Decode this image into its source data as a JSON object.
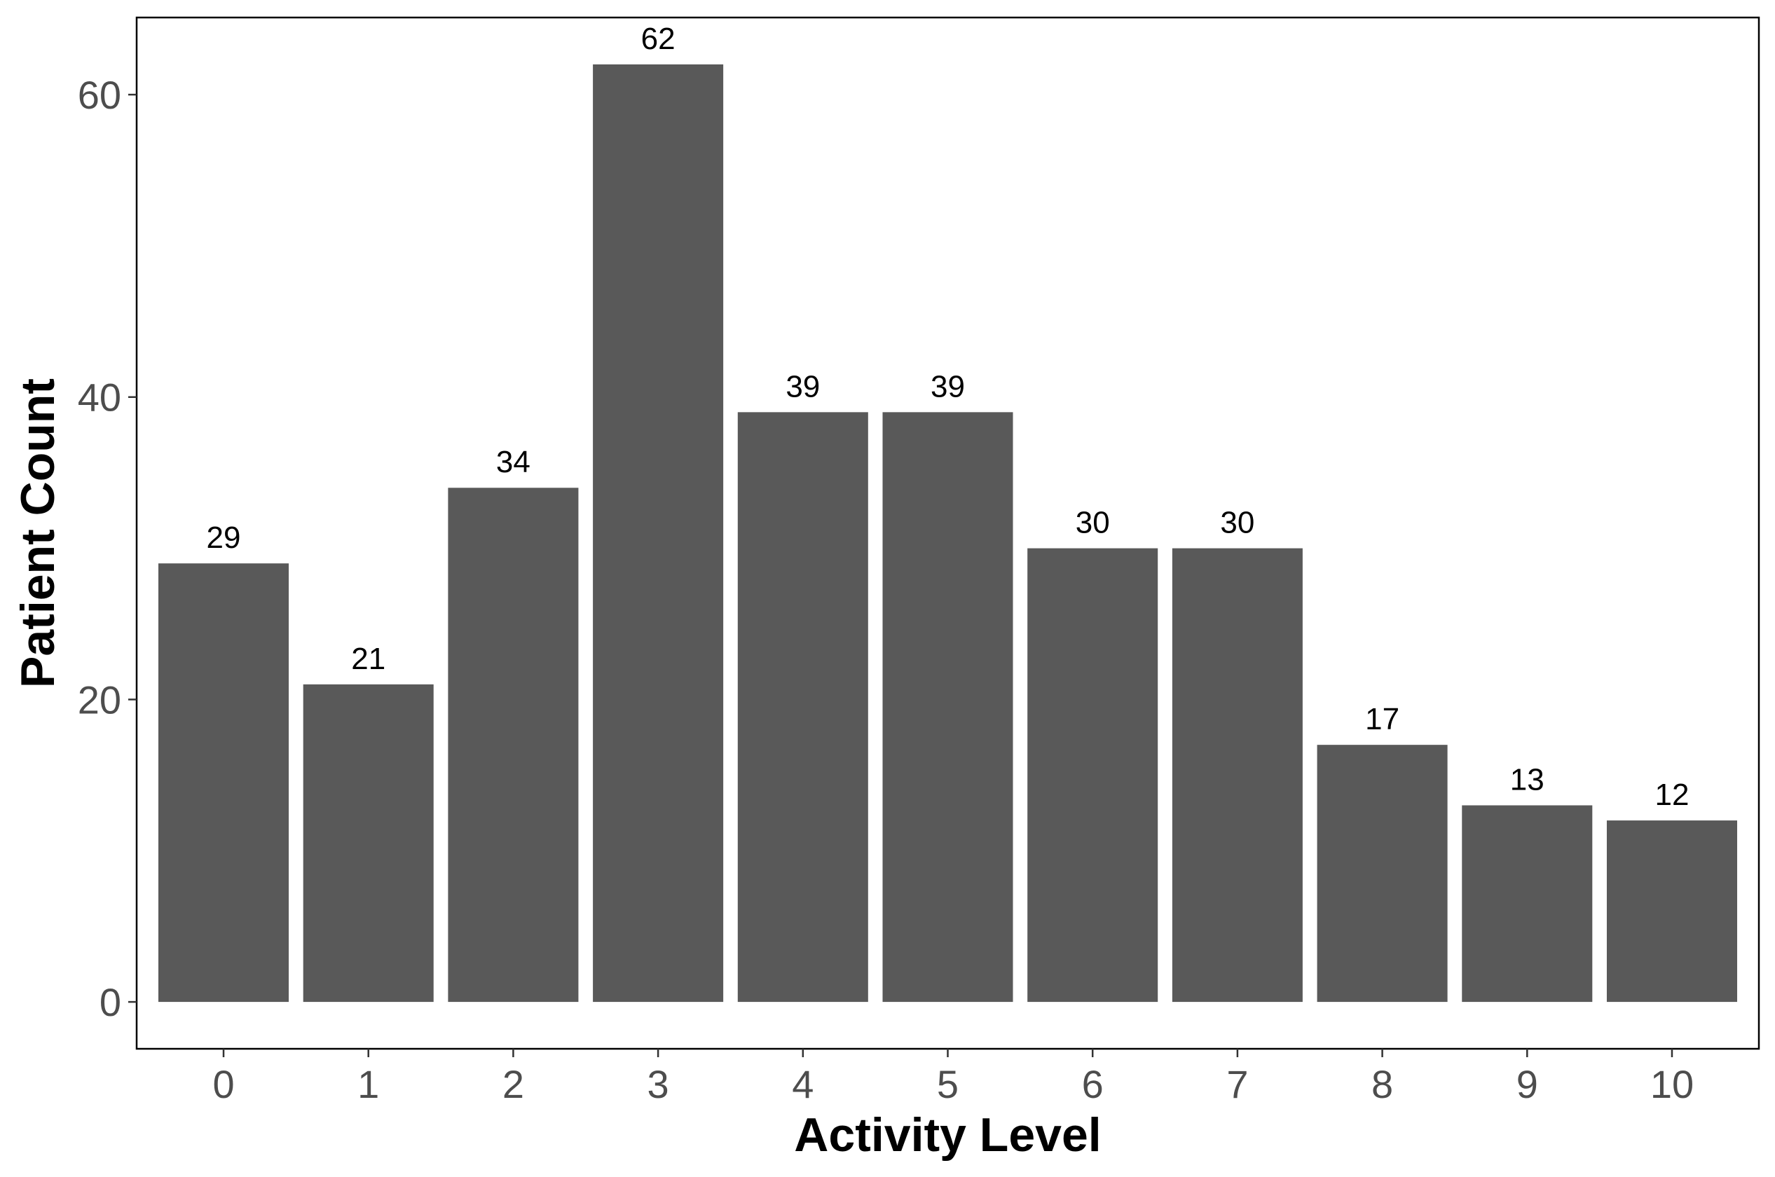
{
  "chart_data": {
    "type": "bar",
    "xlabel": "Activity Level",
    "ylabel": "Patient Count",
    "categories": [
      "0",
      "1",
      "2",
      "3",
      "4",
      "5",
      "6",
      "7",
      "8",
      "9",
      "10"
    ],
    "values": [
      29,
      21,
      34,
      62,
      39,
      39,
      30,
      30,
      17,
      13,
      12
    ],
    "data_labels": [
      "29",
      "21",
      "34",
      "62",
      "39",
      "39",
      "30",
      "30",
      "17",
      "13",
      "12"
    ],
    "yticks": [
      0,
      20,
      40,
      60
    ],
    "ytick_labels": [
      "0",
      "20",
      "40",
      "60"
    ],
    "ylim": [
      -3.1,
      65.1
    ],
    "grid": false,
    "legend": "none",
    "bar_color": "#595959",
    "panel_border_color": "#000000",
    "background_color": "#ffffff"
  }
}
